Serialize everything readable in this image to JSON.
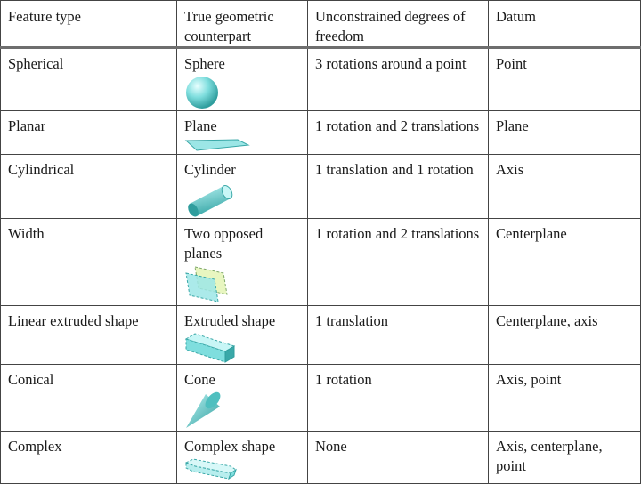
{
  "table": {
    "headers": [
      "Feature type",
      "True geometric counterpart",
      "Unconstrained degrees of freedom",
      "Datum"
    ],
    "rows": [
      {
        "feature": "Spherical",
        "counterpart": "Sphere",
        "icon": "sphere-icon",
        "dof": "3 rotations around a point",
        "datum": "Point"
      },
      {
        "feature": "Planar",
        "counterpart": "Plane",
        "icon": "plane-icon",
        "dof": "1 rotation and 2 translations",
        "datum": "Plane"
      },
      {
        "feature": "Cylindrical",
        "counterpart": "Cylinder",
        "icon": "cylinder-icon",
        "dof": "1 translation and 1 rotation",
        "datum": "Axis"
      },
      {
        "feature": "Width",
        "counterpart": "Two opposed planes",
        "icon": "opposed-planes-icon",
        "dof": "1 rotation and 2 translations",
        "datum": "Centerplane"
      },
      {
        "feature": "Linear extruded shape",
        "counterpart": "Extruded shape",
        "icon": "extruded-shape-icon",
        "dof": "1 translation",
        "datum": "Centerplane, axis"
      },
      {
        "feature": "Conical",
        "counterpart": "Cone",
        "icon": "cone-icon",
        "dof": "1 rotation",
        "datum": "Axis, point"
      },
      {
        "feature": "Complex",
        "counterpart": "Complex shape",
        "icon": "complex-shape-icon",
        "dof": "None",
        "datum": "Axis, centerplane, point"
      }
    ]
  },
  "colors": {
    "shape_fill": "#7fdede",
    "shape_edge": "#3aa8a8",
    "border": "#444444"
  }
}
